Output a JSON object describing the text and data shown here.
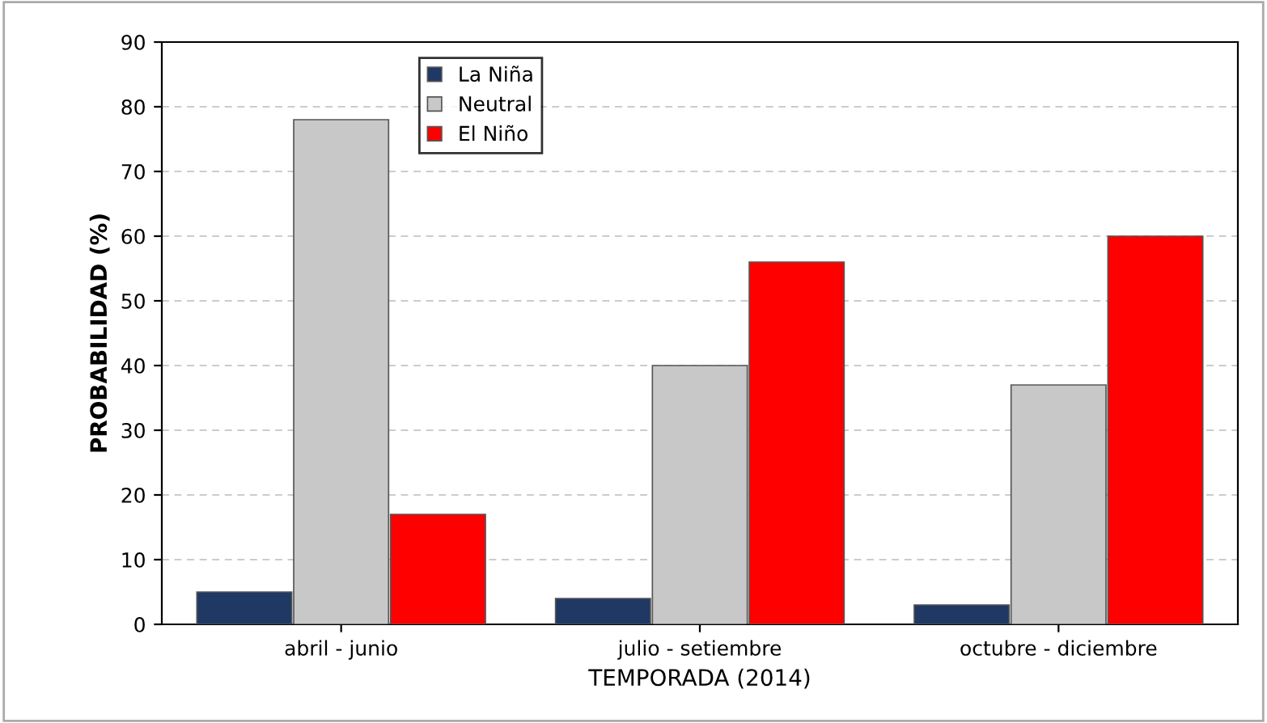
{
  "chart_data": {
    "type": "bar",
    "xlabel": "TEMPORADA (2014)",
    "ylabel": "PROBABILIDAD (%)",
    "categories": [
      "abril - junio",
      "julio - setiembre",
      "octubre - diciembre"
    ],
    "series": [
      {
        "name": "La Niña",
        "color": "#1f3864",
        "values": [
          5,
          4,
          3
        ]
      },
      {
        "name": "Neutral",
        "color": "#c8c8c8",
        "values": [
          78,
          40,
          37
        ]
      },
      {
        "name": "El Niño",
        "color": "#ff0000",
        "values": [
          17,
          56,
          60
        ]
      }
    ],
    "ylim": [
      0,
      90
    ],
    "yticks": [
      0,
      10,
      20,
      30,
      40,
      50,
      60,
      70,
      80,
      90
    ],
    "grid": "y",
    "legend": "top left"
  }
}
